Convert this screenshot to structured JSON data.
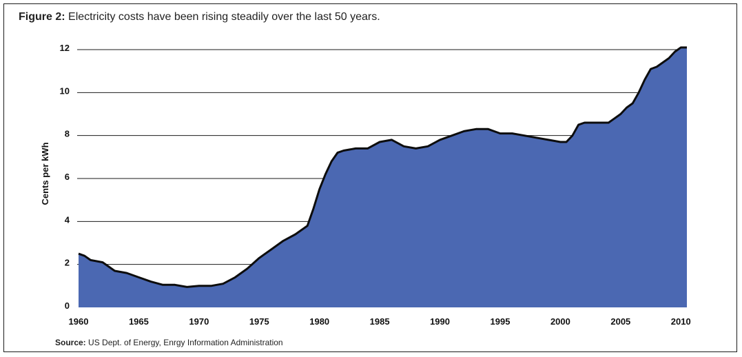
{
  "caption": {
    "label": "Figure 2:",
    "text": "Electricity costs have been rising steadily over the last 50 years."
  },
  "source": {
    "label": "Source:",
    "text": "US Dept. of Energy, Enrgy Information Administration"
  },
  "colors": {
    "fill": "#4B68B2",
    "line": "#0d0d0d",
    "grid": "#1a1a1a"
  },
  "chart_data": {
    "type": "area",
    "title": "",
    "xlabel": "",
    "ylabel": "Cents per kWh",
    "xlim": [
      1960,
      2010.5
    ],
    "ylim": [
      0,
      12
    ],
    "grid": "horizontal",
    "x_ticks": [
      1960,
      1965,
      1970,
      1975,
      1980,
      1985,
      1990,
      1995,
      2000,
      2005,
      2010
    ],
    "y_ticks": [
      0,
      2,
      4,
      6,
      8,
      10,
      12
    ],
    "x": [
      1960,
      1960.5,
      1961,
      1962,
      1963,
      1964,
      1965,
      1966,
      1967,
      1968,
      1969,
      1970,
      1971,
      1972,
      1973,
      1974,
      1975,
      1976,
      1977,
      1978,
      1979,
      1979.5,
      1980,
      1980.5,
      1981,
      1981.5,
      1982,
      1983,
      1984,
      1985,
      1986,
      1987,
      1988,
      1989,
      1990,
      1991,
      1992,
      1993,
      1994,
      1995,
      1996,
      1997,
      1998,
      1999,
      2000,
      2000.5,
      2001,
      2001.5,
      2002,
      2003,
      2004,
      2005,
      2005.5,
      2006,
      2006.5,
      2007,
      2007.5,
      2008,
      2009,
      2009.5,
      2010,
      2010.5
    ],
    "values": [
      2.5,
      2.4,
      2.2,
      2.1,
      1.7,
      1.6,
      1.4,
      1.2,
      1.05,
      1.05,
      0.95,
      1.0,
      1.0,
      1.1,
      1.4,
      1.8,
      2.3,
      2.7,
      3.1,
      3.4,
      3.8,
      4.6,
      5.5,
      6.2,
      6.8,
      7.2,
      7.3,
      7.4,
      7.4,
      7.7,
      7.8,
      7.5,
      7.4,
      7.5,
      7.8,
      8.0,
      8.2,
      8.3,
      8.3,
      8.1,
      8.1,
      8.0,
      7.9,
      7.8,
      7.7,
      7.7,
      8.0,
      8.5,
      8.6,
      8.6,
      8.6,
      9.0,
      9.3,
      9.5,
      10.0,
      10.6,
      11.1,
      11.2,
      11.6,
      11.9,
      12.1,
      12.1
    ]
  }
}
